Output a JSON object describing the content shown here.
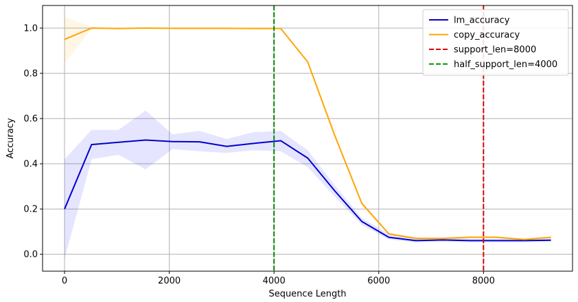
{
  "chart_data": {
    "type": "line",
    "title": "",
    "xlabel": "Sequence Length",
    "ylabel": "Accuracy",
    "xlim": [
      -420,
      9700
    ],
    "ylim": [
      -0.075,
      1.1
    ],
    "xticks": [
      0,
      2000,
      4000,
      6000,
      8000
    ],
    "xtick_labels": [
      "0",
      "2000",
      "4000",
      "6000",
      "8000"
    ],
    "yticks": [
      0.0,
      0.2,
      0.4,
      0.6,
      0.8,
      1.0
    ],
    "ytick_labels": [
      "0.0",
      "0.2",
      "0.4",
      "0.6",
      "0.8",
      "1.0"
    ],
    "grid": true,
    "legend_position": "top-right",
    "x": [
      0,
      516,
      1032,
      1548,
      2064,
      2580,
      3096,
      3612,
      4128,
      4644,
      5160,
      5676,
      6192,
      6708,
      7224,
      7740,
      8256,
      8772,
      9288
    ],
    "series": [
      {
        "name": "lm_accuracy",
        "color": "#0000cc",
        "band_color": "#0000ff",
        "values": [
          0.2,
          0.485,
          0.495,
          0.505,
          0.498,
          0.497,
          0.477,
          0.49,
          0.502,
          0.425,
          0.28,
          0.145,
          0.075,
          0.06,
          0.063,
          0.06,
          0.06,
          0.06,
          0.062
        ],
        "lower": [
          -0.02,
          0.42,
          0.44,
          0.375,
          0.465,
          0.455,
          0.448,
          0.46,
          0.455,
          0.385,
          0.255,
          0.13,
          0.065,
          0.052,
          0.055,
          0.053,
          0.053,
          0.053,
          0.055
        ],
        "upper": [
          0.42,
          0.55,
          0.55,
          0.635,
          0.53,
          0.545,
          0.51,
          0.54,
          0.545,
          0.46,
          0.305,
          0.16,
          0.09,
          0.07,
          0.073,
          0.068,
          0.068,
          0.068,
          0.07
        ]
      },
      {
        "name": "copy_accuracy",
        "color": "#ffa500",
        "band_color": "#ffa500",
        "values": [
          0.95,
          1.0,
          0.998,
          1.0,
          0.999,
          0.999,
          0.999,
          0.998,
          0.998,
          0.85,
          0.525,
          0.225,
          0.09,
          0.07,
          0.07,
          0.075,
          0.075,
          0.065,
          0.075
        ],
        "lower": [
          0.845,
          0.995,
          0.996,
          0.997,
          0.997,
          0.997,
          0.997,
          0.996,
          0.996,
          0.845,
          0.515,
          0.215,
          0.085,
          0.065,
          0.065,
          0.07,
          0.07,
          0.06,
          0.07
        ],
        "upper": [
          1.05,
          1.005,
          1.0,
          1.003,
          1.002,
          1.002,
          1.002,
          1.0,
          1.0,
          0.855,
          0.535,
          0.235,
          0.095,
          0.075,
          0.075,
          0.08,
          0.08,
          0.07,
          0.08
        ]
      }
    ],
    "vlines": [
      {
        "name": "support_len=8000",
        "x": 8000,
        "color": "#dd0000"
      },
      {
        "name": "half_support_len=4000",
        "x": 4000,
        "color": "#008800"
      }
    ]
  }
}
